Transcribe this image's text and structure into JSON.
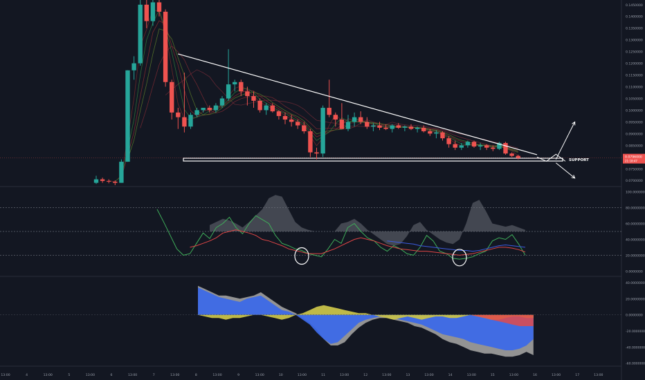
{
  "chart_data": [
    {
      "type": "candlestick",
      "title": "",
      "price_axis_labels": [
        "0.1450000",
        "0.1400000",
        "0.1350000",
        "0.1300000",
        "0.1250000",
        "0.1200000",
        "0.1150000",
        "0.1100000",
        "0.1050000",
        "0.1000000",
        "0.0950000",
        "0.0900000",
        "0.0850000",
        "0.0800000",
        "0.0750000",
        "0.0700000"
      ],
      "ylim": [
        0.068,
        0.147
      ],
      "current_price_label": "0.0796000",
      "current_price_sublabel": "21:18:47",
      "annotations": [
        {
          "text": "SUPPORT"
        }
      ],
      "support_zone": [
        0.0783,
        0.0795
      ],
      "trendline": [
        {
          "x": 13,
          "y": 0.124
        },
        {
          "x": 70,
          "y": 0.081
        }
      ],
      "arrows": [
        {
          "from": [
            73,
            0.079
          ],
          "to": [
            76,
            0.095
          ]
        },
        {
          "from": [
            73,
            0.0775
          ],
          "to": [
            76,
            0.071
          ]
        }
      ],
      "candles": [
        {
          "o": 0.069,
          "h": 0.072,
          "l": 0.0685,
          "c": 0.0705
        },
        {
          "o": 0.0705,
          "h": 0.0712,
          "l": 0.069,
          "c": 0.0698
        },
        {
          "o": 0.0698,
          "h": 0.0705,
          "l": 0.0688,
          "c": 0.0695
        },
        {
          "o": 0.0695,
          "h": 0.07,
          "l": 0.068,
          "c": 0.069
        },
        {
          "o": 0.069,
          "h": 0.079,
          "l": 0.069,
          "c": 0.078
        },
        {
          "o": 0.078,
          "h": 0.117,
          "l": 0.078,
          "c": 0.117
        },
        {
          "o": 0.117,
          "h": 0.123,
          "l": 0.113,
          "c": 0.12
        },
        {
          "o": 0.12,
          "h": 0.147,
          "l": 0.119,
          "c": 0.145
        },
        {
          "o": 0.145,
          "h": 0.147,
          "l": 0.135,
          "c": 0.138
        },
        {
          "o": 0.138,
          "h": 0.147,
          "l": 0.136,
          "c": 0.146
        },
        {
          "o": 0.146,
          "h": 0.147,
          "l": 0.14,
          "c": 0.142
        },
        {
          "o": 0.142,
          "h": 0.143,
          "l": 0.11,
          "c": 0.112
        },
        {
          "o": 0.112,
          "h": 0.113,
          "l": 0.096,
          "c": 0.099
        },
        {
          "o": 0.099,
          "h": 0.101,
          "l": 0.092,
          "c": 0.097
        },
        {
          "o": 0.097,
          "h": 0.116,
          "l": 0.0905,
          "c": 0.093
        },
        {
          "o": 0.093,
          "h": 0.099,
          "l": 0.092,
          "c": 0.098
        },
        {
          "o": 0.098,
          "h": 0.101,
          "l": 0.097,
          "c": 0.1
        },
        {
          "o": 0.1,
          "h": 0.101,
          "l": 0.099,
          "c": 0.101
        },
        {
          "o": 0.101,
          "h": 0.102,
          "l": 0.099,
          "c": 0.1
        },
        {
          "o": 0.1,
          "h": 0.103,
          "l": 0.099,
          "c": 0.102
        },
        {
          "o": 0.102,
          "h": 0.106,
          "l": 0.101,
          "c": 0.105
        },
        {
          "o": 0.105,
          "h": 0.126,
          "l": 0.104,
          "c": 0.111
        },
        {
          "o": 0.111,
          "h": 0.113,
          "l": 0.108,
          "c": 0.112
        },
        {
          "o": 0.112,
          "h": 0.113,
          "l": 0.106,
          "c": 0.108
        },
        {
          "o": 0.108,
          "h": 0.11,
          "l": 0.102,
          "c": 0.106
        },
        {
          "o": 0.106,
          "h": 0.108,
          "l": 0.101,
          "c": 0.104
        },
        {
          "o": 0.104,
          "h": 0.105,
          "l": 0.099,
          "c": 0.1
        },
        {
          "o": 0.1,
          "h": 0.103,
          "l": 0.098,
          "c": 0.102
        },
        {
          "o": 0.102,
          "h": 0.103,
          "l": 0.099,
          "c": 0.0995
        },
        {
          "o": 0.0995,
          "h": 0.1,
          "l": 0.096,
          "c": 0.0975
        },
        {
          "o": 0.0975,
          "h": 0.099,
          "l": 0.094,
          "c": 0.096
        },
        {
          "o": 0.096,
          "h": 0.098,
          "l": 0.093,
          "c": 0.095
        },
        {
          "o": 0.095,
          "h": 0.096,
          "l": 0.092,
          "c": 0.0935
        },
        {
          "o": 0.0935,
          "h": 0.095,
          "l": 0.09,
          "c": 0.091
        },
        {
          "o": 0.091,
          "h": 0.092,
          "l": 0.08,
          "c": 0.082
        },
        {
          "o": 0.082,
          "h": 0.084,
          "l": 0.079,
          "c": 0.0815
        },
        {
          "o": 0.0815,
          "h": 0.102,
          "l": 0.08,
          "c": 0.101
        },
        {
          "o": 0.101,
          "h": 0.113,
          "l": 0.097,
          "c": 0.098
        },
        {
          "o": 0.098,
          "h": 0.099,
          "l": 0.093,
          "c": 0.096
        },
        {
          "o": 0.096,
          "h": 0.103,
          "l": 0.092,
          "c": 0.092
        },
        {
          "o": 0.092,
          "h": 0.098,
          "l": 0.091,
          "c": 0.095
        },
        {
          "o": 0.095,
          "h": 0.099,
          "l": 0.093,
          "c": 0.097
        },
        {
          "o": 0.097,
          "h": 0.0995,
          "l": 0.094,
          "c": 0.095
        },
        {
          "o": 0.095,
          "h": 0.097,
          "l": 0.092,
          "c": 0.093
        },
        {
          "o": 0.093,
          "h": 0.0945,
          "l": 0.091,
          "c": 0.0935
        },
        {
          "o": 0.0935,
          "h": 0.095,
          "l": 0.0915,
          "c": 0.0925
        },
        {
          "o": 0.0925,
          "h": 0.094,
          "l": 0.0915,
          "c": 0.092
        },
        {
          "o": 0.092,
          "h": 0.094,
          "l": 0.0905,
          "c": 0.0935
        },
        {
          "o": 0.0935,
          "h": 0.0945,
          "l": 0.092,
          "c": 0.0925
        },
        {
          "o": 0.0925,
          "h": 0.0935,
          "l": 0.091,
          "c": 0.093
        },
        {
          "o": 0.093,
          "h": 0.094,
          "l": 0.0915,
          "c": 0.092
        },
        {
          "o": 0.092,
          "h": 0.093,
          "l": 0.0905,
          "c": 0.0925
        },
        {
          "o": 0.0925,
          "h": 0.0935,
          "l": 0.0905,
          "c": 0.091
        },
        {
          "o": 0.091,
          "h": 0.092,
          "l": 0.089,
          "c": 0.09
        },
        {
          "o": 0.09,
          "h": 0.0915,
          "l": 0.088,
          "c": 0.0905
        },
        {
          "o": 0.0905,
          "h": 0.091,
          "l": 0.087,
          "c": 0.088
        },
        {
          "o": 0.088,
          "h": 0.089,
          "l": 0.084,
          "c": 0.0855
        },
        {
          "o": 0.0855,
          "h": 0.087,
          "l": 0.083,
          "c": 0.084
        },
        {
          "o": 0.084,
          "h": 0.086,
          "l": 0.083,
          "c": 0.085
        },
        {
          "o": 0.085,
          "h": 0.087,
          "l": 0.084,
          "c": 0.0865
        },
        {
          "o": 0.0865,
          "h": 0.087,
          "l": 0.084,
          "c": 0.0845
        },
        {
          "o": 0.0845,
          "h": 0.086,
          "l": 0.083,
          "c": 0.085
        },
        {
          "o": 0.085,
          "h": 0.0855,
          "l": 0.083,
          "c": 0.084
        },
        {
          "o": 0.084,
          "h": 0.085,
          "l": 0.0825,
          "c": 0.0835
        },
        {
          "o": 0.0835,
          "h": 0.0865,
          "l": 0.083,
          "c": 0.086
        },
        {
          "o": 0.086,
          "h": 0.0865,
          "l": 0.081,
          "c": 0.0815
        },
        {
          "o": 0.0815,
          "h": 0.082,
          "l": 0.08,
          "c": 0.0805
        },
        {
          "o": 0.0805,
          "h": 0.081,
          "l": 0.079,
          "c": 0.0796
        }
      ]
    },
    {
      "type": "line",
      "title": "",
      "y_axis_labels": [
        "100.0000000",
        "80.0000000",
        "60.0000000",
        "40.0000000",
        "20.0000000",
        "0.0000000"
      ],
      "ylim": [
        -5,
        105
      ],
      "horizontal_levels": [
        80,
        50,
        20
      ],
      "series": [
        {
          "values": [
            78,
            62,
            45,
            28,
            20,
            22,
            35,
            48,
            41,
            55,
            60,
            68,
            55,
            47,
            60,
            70,
            65,
            60,
            45,
            35,
            32,
            28,
            26,
            22,
            20,
            18,
            28,
            40,
            35,
            55,
            60,
            50,
            42,
            38,
            30,
            25,
            32,
            28,
            22,
            20,
            30,
            45,
            38,
            25,
            22,
            16,
            15,
            16,
            18,
            22,
            25,
            38,
            42,
            40,
            46,
            34,
            20
          ],
          "color": "#3fae5a"
        },
        {
          "values": [
            null,
            null,
            null,
            null,
            null,
            30,
            32,
            35,
            38,
            42,
            48,
            50,
            52,
            50,
            48,
            45,
            40,
            38,
            35,
            32,
            28,
            26,
            24,
            22,
            22,
            22,
            25,
            28,
            32,
            36,
            40,
            42,
            40,
            38,
            35,
            32,
            30,
            28,
            27,
            26,
            25,
            25,
            24,
            23,
            22,
            21,
            20,
            21,
            22,
            24,
            26,
            28,
            30,
            30,
            29,
            27,
            24
          ],
          "color": "#e04646"
        },
        {
          "values": [
            null,
            null,
            null,
            null,
            null,
            null,
            null,
            null,
            null,
            null,
            null,
            null,
            null,
            null,
            null,
            null,
            null,
            null,
            null,
            null,
            null,
            null,
            null,
            null,
            null,
            null,
            null,
            null,
            null,
            null,
            null,
            null,
            null,
            null,
            null,
            38,
            37,
            36,
            35,
            34,
            32,
            31,
            30,
            29,
            28,
            27,
            26,
            26,
            25,
            26,
            28,
            30,
            32,
            33,
            32,
            31,
            30
          ],
          "color": "#3c5be0"
        }
      ],
      "band_upper": [
        null,
        null,
        null,
        null,
        null,
        null,
        null,
        null,
        58,
        62,
        66,
        64,
        60,
        55,
        62,
        70,
        78,
        92,
        96,
        94,
        78,
        62,
        55,
        52,
        50,
        50,
        50,
        50,
        60,
        62,
        66,
        60,
        52,
        46,
        40,
        34,
        32,
        34,
        44,
        58,
        62,
        52,
        46,
        40,
        36,
        34,
        40,
        60,
        86,
        90,
        76,
        60,
        58,
        56,
        58,
        55,
        52
      ],
      "circles": [
        {
          "x": 22,
          "y": 19
        },
        {
          "x": 46,
          "y": 17
        }
      ]
    },
    {
      "type": "area",
      "title": "",
      "y_axis_labels": [
        "40.0000000",
        "20.0000000",
        "0.0000000",
        "-20.0000000",
        "-40.0000000",
        "-60.0000000"
      ],
      "ylim": [
        -62,
        46
      ],
      "series": [
        {
          "values": [
            34,
            30,
            26,
            22,
            20,
            18,
            16,
            20,
            22,
            24,
            18,
            12,
            6,
            4,
            0,
            -6,
            -12,
            -22,
            -30,
            -36,
            -34,
            -26,
            -18,
            -10,
            -6,
            -4,
            -2,
            -2,
            -4,
            -6,
            -8,
            -10,
            -12,
            -16,
            -20,
            -24,
            -26,
            -28,
            -30,
            -34,
            -36,
            -38,
            -40,
            -42,
            -44,
            -44,
            -42,
            -38,
            -30
          ],
          "color": "#3c69e7"
        },
        {
          "values": [
            36,
            32,
            28,
            24,
            24,
            22,
            20,
            22,
            24,
            28,
            22,
            16,
            10,
            6,
            2,
            -4,
            -10,
            -18,
            -30,
            -38,
            -38,
            -34,
            -24,
            -16,
            -10,
            -6,
            -4,
            -4,
            -6,
            -8,
            -10,
            -14,
            -16,
            -20,
            -24,
            -30,
            -34,
            -36,
            -40,
            -44,
            -46,
            -48,
            -48,
            -50,
            -52,
            -52,
            -50,
            -46,
            -50
          ],
          "color": "#9a9a9a"
        },
        {
          "values": [
            0,
            -2,
            -4,
            -4,
            -6,
            -4,
            -4,
            -2,
            0,
            0,
            -2,
            -4,
            -6,
            -4,
            0,
            2,
            6,
            10,
            12,
            10,
            8,
            6,
            4,
            2,
            2,
            0,
            -2,
            -4,
            -6,
            -4,
            -2,
            -4,
            -6,
            -4,
            -2,
            -2,
            -4,
            -4,
            -2,
            0,
            -2,
            -4,
            -6,
            -6,
            -4,
            -2,
            -2,
            -4,
            -4
          ],
          "color": "#c8c24a"
        },
        {
          "values": [
            null,
            null,
            null,
            null,
            null,
            null,
            null,
            null,
            null,
            null,
            null,
            null,
            null,
            null,
            null,
            null,
            null,
            null,
            null,
            null,
            null,
            null,
            null,
            null,
            null,
            null,
            null,
            null,
            null,
            null,
            null,
            null,
            null,
            null,
            null,
            null,
            null,
            null,
            null,
            0,
            -2,
            -4,
            -6,
            -8,
            -10,
            -12,
            -14,
            -14,
            -14
          ],
          "color": "#e24a4a"
        }
      ]
    }
  ],
  "time_axis_labels": [
    "13:00",
    "4",
    "13:00",
    "5",
    "13:00",
    "6",
    "13:00",
    "7",
    "13:00",
    "8",
    "13:00",
    "9",
    "13:00",
    "10",
    "13:00",
    "11",
    "13:00",
    "12",
    "13:00",
    "13",
    "13:00",
    "14",
    "13:00",
    "15",
    "13:00",
    "16",
    "13:00",
    "17",
    "13:00"
  ],
  "colors": {
    "bg": "#131722",
    "bull": "#26a69a",
    "bear": "#ef5350",
    "grid": "#1f2330",
    "axis_text": "#9aa0ab",
    "price_tag": "#ef5350"
  }
}
